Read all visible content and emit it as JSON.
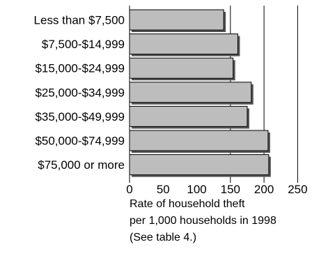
{
  "chart_data": {
    "type": "bar",
    "orientation": "horizontal",
    "categories": [
      "Less than $7,500",
      "$7,500-$14,999",
      "$15,000-$24,999",
      "$25,000-$34,999",
      "$35,000-$49,999",
      "$50,000-$74,999",
      "$75,000 or more"
    ],
    "values": [
      140,
      161,
      154,
      181,
      175,
      206,
      207
    ],
    "xlim": [
      0,
      250
    ],
    "xticks": [
      "0",
      "50",
      "100",
      "150",
      "200",
      "250"
    ],
    "xlabel_lines": [
      "Rate of household theft",
      "per 1,000 households in 1998",
      "(See table 4.)"
    ],
    "ylabel": "",
    "title": "",
    "grid": "vertical lines at 150, 200, 250",
    "colors": {
      "bar_fill": "#bdbdbd",
      "bar_border": "#000000",
      "bar_shadow": "#555555",
      "gridline": "#000000",
      "text": "#000000"
    }
  }
}
